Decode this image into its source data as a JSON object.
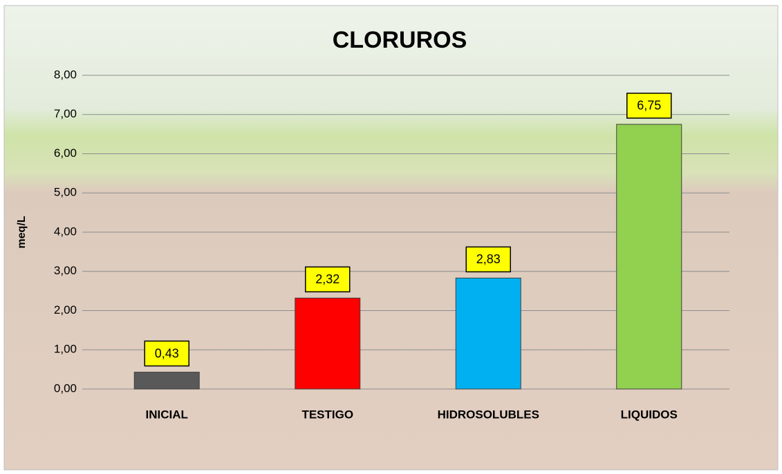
{
  "chart_data": {
    "type": "bar",
    "title": "CLORUROS",
    "y_label": "meq/L",
    "categories": [
      "INICIAL",
      "TESTIGO",
      "HIDROSOLUBLES",
      "LIQUIDOS"
    ],
    "values": [
      0.43,
      2.32,
      2.83,
      6.75
    ],
    "value_labels": [
      "0,43",
      "2,32",
      "2,83",
      "6,75"
    ],
    "colors": [
      "#595959",
      "#ff0000",
      "#00b0f0",
      "#92d050"
    ],
    "ylim": [
      0,
      8
    ],
    "yticks": [
      {
        "value": 0,
        "label": "0,00"
      },
      {
        "value": 1,
        "label": "1,00"
      },
      {
        "value": 2,
        "label": "2,00"
      },
      {
        "value": 3,
        "label": "3,00"
      },
      {
        "value": 4,
        "label": "4,00"
      },
      {
        "value": 5,
        "label": "5,00"
      },
      {
        "value": 6,
        "label": "6,00"
      },
      {
        "value": 7,
        "label": "7,00"
      },
      {
        "value": 8,
        "label": "8,00"
      }
    ],
    "grid": true
  }
}
